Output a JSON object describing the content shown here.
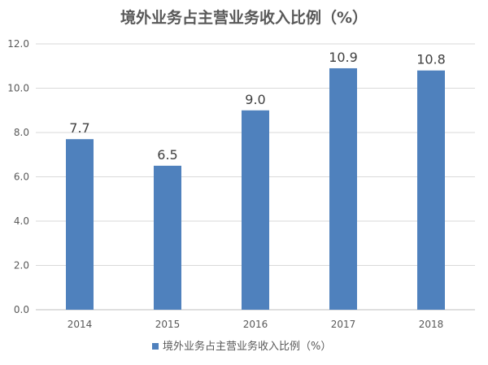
{
  "chart_data": {
    "type": "bar",
    "title": "境外业务占主营业务收入比例（%）",
    "categories": [
      "2014",
      "2015",
      "2016",
      "2017",
      "2018"
    ],
    "series": [
      {
        "name": "境外业务占主营业务收入比例（%）",
        "values": [
          7.7,
          6.5,
          9.0,
          10.9,
          10.8
        ],
        "labels": [
          "7.7",
          "6.5",
          "9.0",
          "10.9",
          "10.8"
        ],
        "color": "#4f81bd"
      }
    ],
    "yticks": [
      "0.0",
      "2.0",
      "4.0",
      "6.0",
      "8.0",
      "10.0",
      "12.0"
    ],
    "ylim": [
      0,
      12
    ],
    "xlabel": "",
    "ylabel": "",
    "grid": true,
    "legend": "bottom"
  }
}
